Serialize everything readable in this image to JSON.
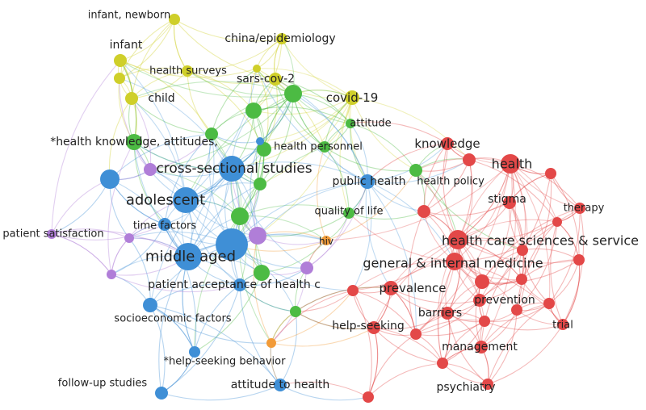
{
  "colors": {
    "yellow": "#cfcf2a",
    "green": "#4cbb43",
    "blue": "#3f8fd6",
    "purple": "#b07ed8",
    "red": "#e34848",
    "orange": "#f29b38"
  },
  "clusters": {
    "yellow": [
      {
        "id": "y1",
        "label": "infant, newborn"
      },
      {
        "id": "y2",
        "label": "infant"
      },
      {
        "id": "y3",
        "label": "china/epidemiology"
      },
      {
        "id": "y4",
        "label": "health surveys"
      },
      {
        "id": "y5",
        "label": "sars-cov-2"
      },
      {
        "id": "y6",
        "label": "child"
      },
      {
        "id": "y7",
        "label": "covid-19"
      },
      {
        "id": "y8",
        "label": ""
      },
      {
        "id": "y9",
        "label": ""
      }
    ],
    "green": [
      {
        "id": "g1",
        "label": "attitude"
      },
      {
        "id": "g2",
        "label": "*health knowledge, attitudes,"
      },
      {
        "id": "g3",
        "label": "health personnel"
      },
      {
        "id": "g4",
        "label": "health policy"
      },
      {
        "id": "g5",
        "label": "quality of life"
      },
      {
        "id": "g6",
        "label": ""
      },
      {
        "id": "g7",
        "label": ""
      },
      {
        "id": "g8",
        "label": ""
      },
      {
        "id": "g9",
        "label": ""
      },
      {
        "id": "g10",
        "label": ""
      },
      {
        "id": "g11",
        "label": ""
      },
      {
        "id": "g12",
        "label": ""
      },
      {
        "id": "g13",
        "label": ""
      }
    ],
    "blue": [
      {
        "id": "b1",
        "label": "cross-sectional studies"
      },
      {
        "id": "b2",
        "label": "adolescent"
      },
      {
        "id": "b3",
        "label": "middle aged"
      },
      {
        "id": "b4",
        "label": "public health"
      },
      {
        "id": "b5",
        "label": "time factors"
      },
      {
        "id": "b6",
        "label": "patient acceptance of health c"
      },
      {
        "id": "b7",
        "label": "socioeconomic factors"
      },
      {
        "id": "b8",
        "label": "*help-seeking behavior"
      },
      {
        "id": "b9",
        "label": "follow-up studies"
      },
      {
        "id": "b10",
        "label": "attitude to health"
      },
      {
        "id": "b11",
        "label": ""
      },
      {
        "id": "b12",
        "label": ""
      },
      {
        "id": "b13",
        "label": ""
      }
    ],
    "purple": [
      {
        "id": "p1",
        "label": "patient satisfaction"
      },
      {
        "id": "p2",
        "label": ""
      },
      {
        "id": "p3",
        "label": ""
      },
      {
        "id": "p4",
        "label": ""
      },
      {
        "id": "p5",
        "label": ""
      },
      {
        "id": "p6",
        "label": ""
      }
    ],
    "orange": [
      {
        "id": "o1",
        "label": "hiv"
      },
      {
        "id": "o2",
        "label": ""
      }
    ],
    "red": [
      {
        "id": "r1",
        "label": "knowledge"
      },
      {
        "id": "r2",
        "label": "health"
      },
      {
        "id": "r3",
        "label": "stigma"
      },
      {
        "id": "r4",
        "label": "therapy"
      },
      {
        "id": "r5",
        "label": "health care sciences & service"
      },
      {
        "id": "r6",
        "label": "general & internal medicine"
      },
      {
        "id": "r7",
        "label": "prevalence"
      },
      {
        "id": "r8",
        "label": "prevention"
      },
      {
        "id": "r9",
        "label": "barriers"
      },
      {
        "id": "r10",
        "label": "trial"
      },
      {
        "id": "r11",
        "label": "help-seeking"
      },
      {
        "id": "r12",
        "label": "management"
      },
      {
        "id": "r13",
        "label": "psychiatry"
      },
      {
        "id": "r14",
        "label": ""
      },
      {
        "id": "r15",
        "label": ""
      },
      {
        "id": "r16",
        "label": ""
      },
      {
        "id": "r17",
        "label": ""
      },
      {
        "id": "r18",
        "label": ""
      },
      {
        "id": "r19",
        "label": ""
      },
      {
        "id": "r20",
        "label": ""
      },
      {
        "id": "r21",
        "label": ""
      },
      {
        "id": "r22",
        "label": ""
      },
      {
        "id": "r23",
        "label": ""
      },
      {
        "id": "r24",
        "label": ""
      },
      {
        "id": "r25",
        "label": ""
      },
      {
        "id": "r26",
        "label": ""
      },
      {
        "id": "r27",
        "label": ""
      },
      {
        "id": "r28",
        "label": ""
      }
    ]
  }
}
